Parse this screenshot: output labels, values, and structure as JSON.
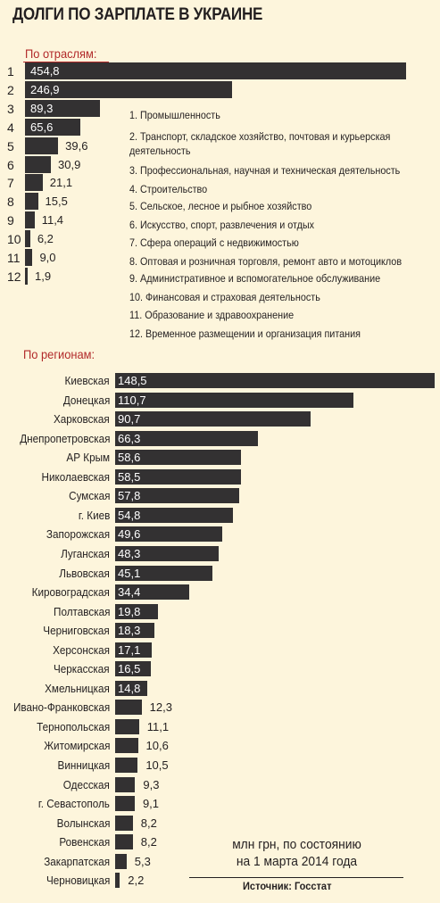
{
  "title": "ДОЛГИ ПО ЗАРПЛАТЕ В УКРАИНЕ",
  "unit_line1": "млн грн, по состоянию",
  "unit_line2": "на 1 марта 2014 года",
  "source": "Источник: Госстат",
  "colors": {
    "bar": "#333132",
    "accent": "#b22a2a",
    "background": "#fdf5dc"
  },
  "chart_data": [
    {
      "type": "bar",
      "orientation": "horizontal",
      "title": "По отраслям:",
      "categories": [
        "1",
        "2",
        "3",
        "4",
        "5",
        "6",
        "7",
        "8",
        "9",
        "10",
        "11",
        "12"
      ],
      "value_labels": [
        "454,8",
        "246,9",
        "89,3",
        "65,6",
        "39,6",
        "30,9",
        "21,1",
        "15,5",
        "11,4",
        "6,2",
        "9,0",
        "1,9"
      ],
      "values": [
        454.8,
        246.9,
        89.3,
        65.6,
        39.6,
        30.9,
        21.1,
        15.5,
        11.4,
        6.2,
        9.0,
        1.9
      ],
      "legend": [
        "1. Промышленность",
        "2. Транспорт, складское хозяйство, почтовая и курьерская деятельность",
        "3. Профессиональная, научная и техническая деятельность",
        "4. Строительство",
        "5. Сельское, лесное и рыбное хозяйство",
        "6. Искусство, спорт, развлечения и отдых",
        "7. Сфера операций с недвижимостью",
        "8. Оптовая и розничная торговля, ремонт авто и мотоциклов",
        "9. Административное и вспомогательное обслуживание",
        "10. Финансовая и страховая деятельность",
        "11. Образование и здравоохранение",
        "12. Временное размещении и организация питания"
      ]
    },
    {
      "type": "bar",
      "orientation": "horizontal",
      "title": "По регионам:",
      "categories": [
        "Киевская",
        "Донецкая",
        "Харковская",
        "Днепропетровская",
        "АР Крым",
        "Николаевская",
        "Сумская",
        "г. Киев",
        "Запорожская",
        "Луганская",
        "Львовская",
        "Кировоградская",
        "Полтавская",
        "Черниговская",
        "Херсонская",
        "Черкасская",
        "Хмельницкая",
        "Ивано-Франковская",
        "Тернопольская",
        "Житомирская",
        "Винницкая",
        "Одесская",
        "г. Севастополь",
        "Волынская",
        "Ровенская",
        "Закарпатская",
        "Черновицкая"
      ],
      "value_labels": [
        "148,5",
        "110,7",
        "90,7",
        "66,3",
        "58,6",
        "58,5",
        "57,8",
        "54,8",
        "49,6",
        "48,3",
        "45,1",
        "34,4",
        "19,8",
        "18,3",
        "17,1",
        "16,5",
        "14,8",
        "12,3",
        "11,1",
        "10,6",
        "10,5",
        "9,3",
        "9,1",
        "8,2",
        "8,2",
        "5,3",
        "2,2"
      ],
      "values": [
        148.5,
        110.7,
        90.7,
        66.3,
        58.6,
        58.5,
        57.8,
        54.8,
        49.6,
        48.3,
        45.1,
        34.4,
        19.8,
        18.3,
        17.1,
        16.5,
        14.8,
        12.3,
        11.1,
        10.6,
        10.5,
        9.3,
        9.1,
        8.2,
        8.2,
        5.3,
        2.2
      ]
    }
  ]
}
